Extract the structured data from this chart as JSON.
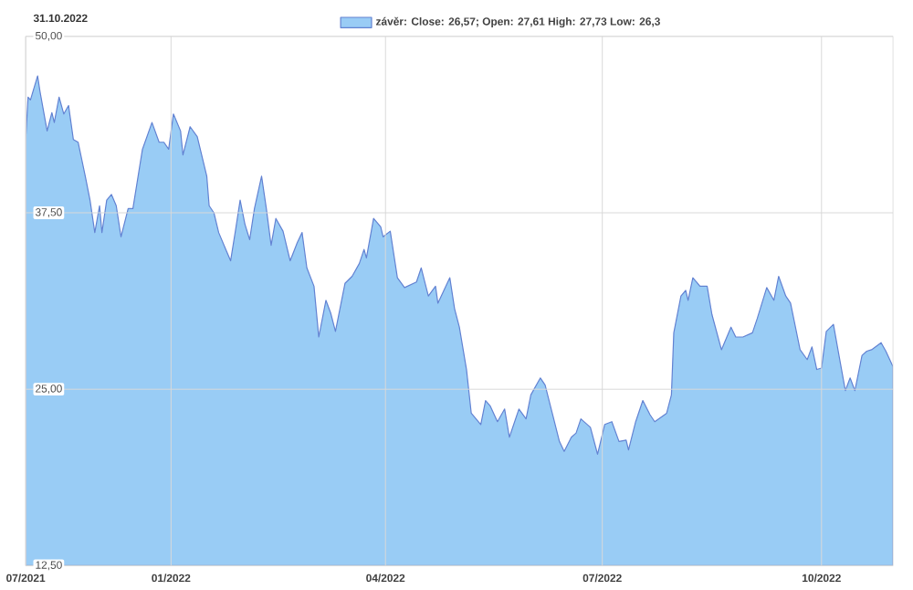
{
  "chart_data": {
    "type": "area",
    "title": "31.10.2022",
    "legend": "top",
    "grid": true,
    "marker": "none",
    "xlim": [
      "2021-11-01",
      "2022-10-31"
    ],
    "xticks": [
      {
        "value": "2021-11-01",
        "label": "07/2021"
      },
      {
        "value": "2022-01-01",
        "label": "01/2022"
      },
      {
        "value": "2022-04-01",
        "label": "04/2022"
      },
      {
        "value": "2022-07-01",
        "label": "07/2022"
      },
      {
        "value": "2022-10-01",
        "label": "10/2022"
      }
    ],
    "ylim": [
      12.5,
      50
    ],
    "yticks": [
      {
        "value": 12.5,
        "label": "12,50"
      },
      {
        "value": 25,
        "label": "25,00"
      },
      {
        "value": 37.5,
        "label": "37,50"
      },
      {
        "value": 50,
        "label": "50,00"
      }
    ],
    "series": [
      {
        "name": "závěr: Close: 26,57; Open: 27,61 High: 27,73 Low: 26,3",
        "color": "#99ccf5",
        "x": [
          "2021-11-01",
          "2021-11-02",
          "2021-11-03",
          "2021-11-06",
          "2021-11-07",
          "2021-11-10",
          "2021-11-12",
          "2021-11-13",
          "2021-11-15",
          "2021-11-17",
          "2021-11-19",
          "2021-11-21",
          "2021-11-23",
          "2021-11-26",
          "2021-11-28",
          "2021-11-30",
          "2021-12-02",
          "2021-12-03",
          "2021-12-05",
          "2021-12-07",
          "2021-12-09",
          "2021-12-11",
          "2021-12-14",
          "2021-12-16",
          "2021-12-20",
          "2021-12-24",
          "2021-12-27",
          "2021-12-29",
          "2021-12-31",
          "2022-01-02",
          "2022-01-05",
          "2022-01-06",
          "2022-01-09",
          "2022-01-12",
          "2022-01-16",
          "2022-01-17",
          "2022-01-19",
          "2022-01-21",
          "2022-01-24",
          "2022-01-26",
          "2022-01-28",
          "2022-01-30",
          "2022-02-01",
          "2022-02-03",
          "2022-02-05",
          "2022-02-08",
          "2022-02-10",
          "2022-02-12",
          "2022-02-14",
          "2022-02-17",
          "2022-02-20",
          "2022-02-23",
          "2022-02-25",
          "2022-02-27",
          "2022-03-02",
          "2022-03-04",
          "2022-03-07",
          "2022-03-09",
          "2022-03-11",
          "2022-03-15",
          "2022-03-18",
          "2022-03-21",
          "2022-03-23",
          "2022-03-24",
          "2022-03-27",
          "2022-03-30",
          "2022-03-31",
          "2022-04-03",
          "2022-04-06",
          "2022-04-09",
          "2022-04-14",
          "2022-04-16",
          "2022-04-19",
          "2022-04-22",
          "2022-04-23",
          "2022-04-28",
          "2022-04-30",
          "2022-05-02",
          "2022-05-05",
          "2022-05-07",
          "2022-05-11",
          "2022-05-13",
          "2022-05-15",
          "2022-05-18",
          "2022-05-21",
          "2022-05-23",
          "2022-05-27",
          "2022-05-30",
          "2022-06-01",
          "2022-06-05",
          "2022-06-07",
          "2022-06-10",
          "2022-06-13",
          "2022-06-15",
          "2022-06-18",
          "2022-06-20",
          "2022-06-22",
          "2022-06-26",
          "2022-06-29",
          "2022-07-02",
          "2022-07-05",
          "2022-07-08",
          "2022-07-11",
          "2022-07-12",
          "2022-07-15",
          "2022-07-18",
          "2022-07-21",
          "2022-07-23",
          "2022-07-28",
          "2022-07-30",
          "2022-07-31",
          "2022-08-03",
          "2022-08-05",
          "2022-08-06",
          "2022-08-08",
          "2022-08-11",
          "2022-08-14",
          "2022-08-16",
          "2022-08-20",
          "2022-08-24",
          "2022-08-26",
          "2022-08-29",
          "2022-09-02",
          "2022-09-04",
          "2022-09-08",
          "2022-09-11",
          "2022-09-13",
          "2022-09-16",
          "2022-09-18",
          "2022-09-22",
          "2022-09-25",
          "2022-09-27",
          "2022-09-29",
          "2022-10-01",
          "2022-10-03",
          "2022-10-06",
          "2022-10-08",
          "2022-10-11",
          "2022-10-13",
          "2022-10-15",
          "2022-10-18",
          "2022-10-20",
          "2022-10-22",
          "2022-10-26",
          "2022-10-28",
          "2022-10-31"
        ],
        "values": [
          42.7,
          45.7,
          45.5,
          47.2,
          46.1,
          43.3,
          44.6,
          43.9,
          45.7,
          44.5,
          45.1,
          42.7,
          42.5,
          40.1,
          38.4,
          36.1,
          38.0,
          36.1,
          38.4,
          38.8,
          38.0,
          35.8,
          37.8,
          37.8,
          42.0,
          43.9,
          42.5,
          42.5,
          42.0,
          44.5,
          43.3,
          41.6,
          43.6,
          42.9,
          40.1,
          38.0,
          37.5,
          36.1,
          34.9,
          34.1,
          36.2,
          38.4,
          36.7,
          35.6,
          37.8,
          40.1,
          37.8,
          35.2,
          37.1,
          36.2,
          34.1,
          35.4,
          36.1,
          33.6,
          32.3,
          28.7,
          31.3,
          30.4,
          29.1,
          32.5,
          33.0,
          33.9,
          34.9,
          34.3,
          37.1,
          36.5,
          35.8,
          36.2,
          32.9,
          32.2,
          32.6,
          33.6,
          31.6,
          32.3,
          31.1,
          32.9,
          30.7,
          29.4,
          26.4,
          23.3,
          22.5,
          24.2,
          23.8,
          22.7,
          23.6,
          21.6,
          23.6,
          22.9,
          24.6,
          25.8,
          25.3,
          23.3,
          21.3,
          20.6,
          21.6,
          21.9,
          22.9,
          22.3,
          20.4,
          22.5,
          22.7,
          21.3,
          21.4,
          20.7,
          22.7,
          24.2,
          23.2,
          22.7,
          23.3,
          24.6,
          29.0,
          31.6,
          32.0,
          31.3,
          32.9,
          32.3,
          32.3,
          30.3,
          27.8,
          29.4,
          28.7,
          28.7,
          29.0,
          30.0,
          32.2,
          31.3,
          33.0,
          31.6,
          31.1,
          27.8,
          27.1,
          28.0,
          26.4,
          26.5,
          29.1,
          29.6,
          27.7,
          24.9,
          25.8,
          24.9,
          27.4,
          27.7,
          27.8,
          28.3,
          27.7,
          26.6
        ]
      }
    ]
  }
}
